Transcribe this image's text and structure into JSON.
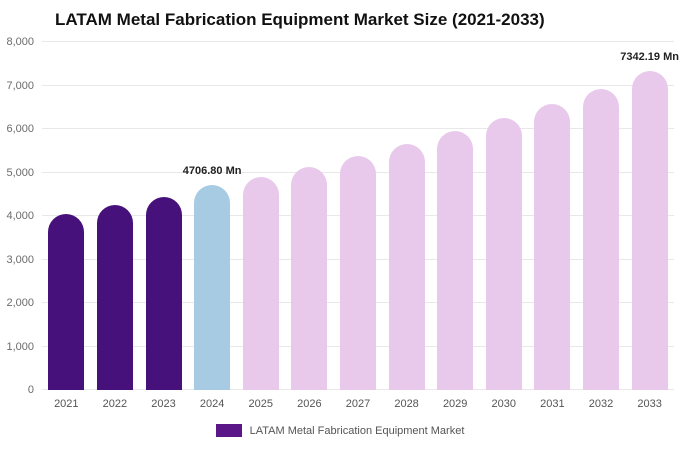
{
  "chart_data": {
    "type": "bar",
    "title": "LATAM Metal Fabrication Equipment Market Size (2021-2033)",
    "xlabel": "",
    "ylabel": "",
    "ylim": [
      0,
      8000
    ],
    "grid": true,
    "categories": [
      "2021",
      "2022",
      "2023",
      "2024",
      "2025",
      "2026",
      "2027",
      "2028",
      "2029",
      "2030",
      "2031",
      "2032",
      "2033"
    ],
    "values": [
      4050,
      4250,
      4440,
      4706.8,
      4900,
      5130,
      5380,
      5650,
      5950,
      6250,
      6580,
      6920,
      7342.19
    ],
    "y_ticks": [
      "0",
      "1,000",
      "2,000",
      "3,000",
      "4,000",
      "5,000",
      "6,000",
      "7,000",
      "8,000"
    ],
    "bar_roles": [
      "historical",
      "historical",
      "historical",
      "current",
      "forecast",
      "forecast",
      "forecast",
      "forecast",
      "forecast",
      "forecast",
      "forecast",
      "forecast",
      "forecast"
    ],
    "colors": {
      "historical": "#47117b",
      "current": "#a6cbe3",
      "forecast": "#e8c9ec"
    },
    "annotations": [
      {
        "index": 3,
        "text": "4706.80 Mn"
      },
      {
        "index": 12,
        "text": "7342.19 Mn"
      }
    ],
    "legend": {
      "label": "LATAM Metal Fabrication Equipment Market",
      "color": "#5b1687",
      "position": "bottom"
    }
  }
}
